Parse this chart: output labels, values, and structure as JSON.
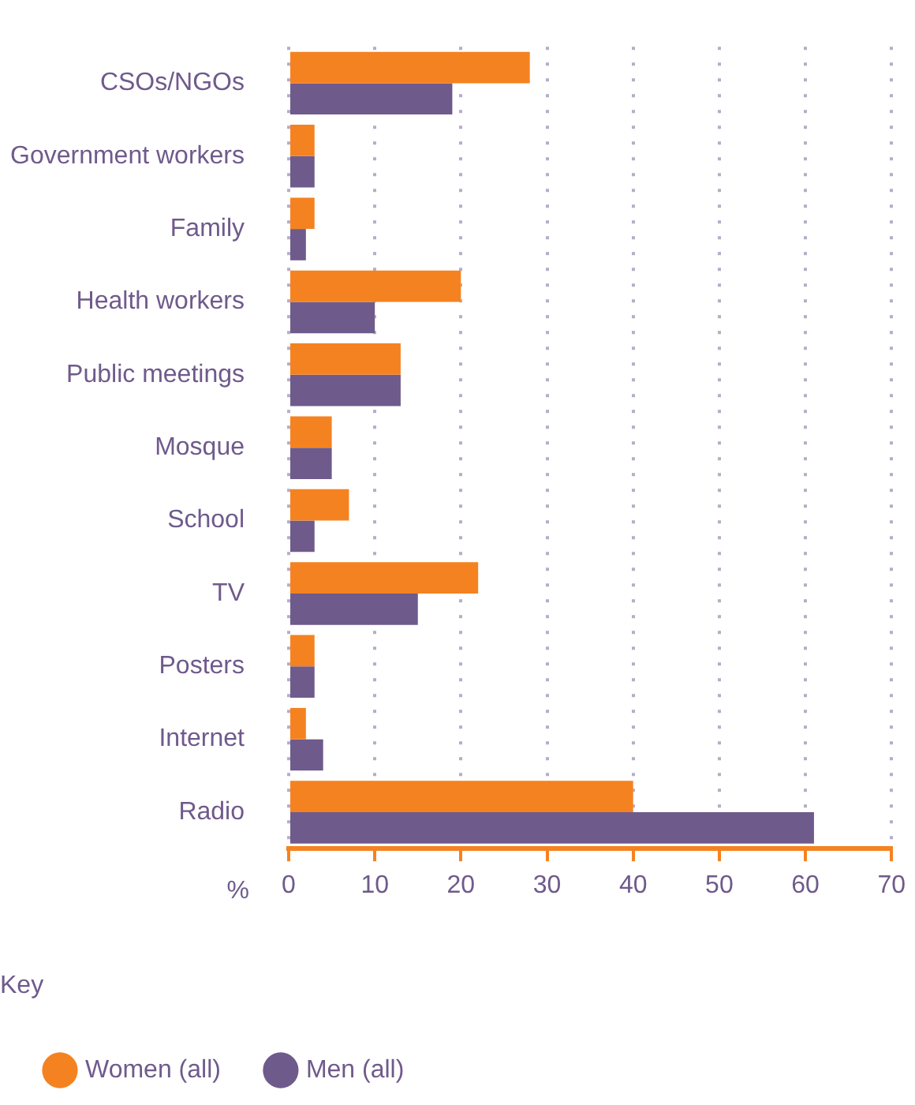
{
  "chart_data": {
    "type": "bar",
    "orientation": "horizontal",
    "xlabel": "%",
    "legend_title": "Key",
    "categories": [
      "CSOs/NGOs",
      "Government workers",
      "Family",
      "Health workers",
      "Public meetings",
      "Mosque",
      "School",
      "TV",
      "Posters",
      "Internet",
      "Radio"
    ],
    "series": [
      {
        "name": "Women (all)",
        "color": "#f58220",
        "values": [
          28,
          3,
          3,
          20,
          13,
          5,
          7,
          22,
          3,
          2,
          40
        ]
      },
      {
        "name": "Men (all)",
        "color": "#6f5a8c",
        "values": [
          19,
          3,
          2,
          10,
          13,
          5,
          3,
          15,
          3,
          4,
          61
        ]
      }
    ],
    "xlim": [
      0,
      70
    ],
    "xticks": [
      0,
      10,
      20,
      30,
      40,
      50,
      60,
      70
    ],
    "grid": "x",
    "legend": "bottom left"
  }
}
